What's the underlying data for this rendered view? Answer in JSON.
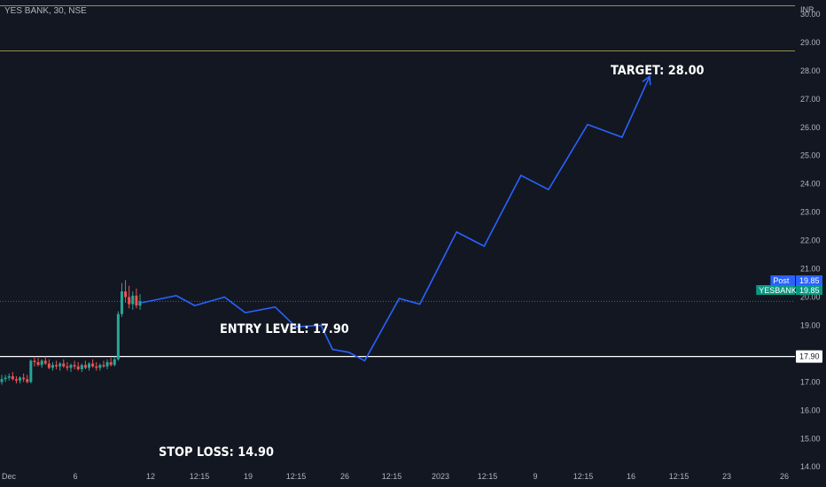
{
  "header": {
    "title": "YES BANK, 30, NSE",
    "currency": "INR"
  },
  "chart_data": {
    "type": "candlestick",
    "ylim": [
      13.6,
      30.5
    ],
    "y_ticks": [
      14,
      15,
      16,
      17,
      18,
      19,
      20,
      21,
      22,
      23,
      24,
      25,
      26,
      27,
      28,
      29,
      30
    ],
    "y_tick_labels": [
      "14.00",
      "15.00",
      "16.00",
      "17.00",
      "18.00",
      "19.00",
      "20.00",
      "21.00",
      "22.00",
      "23.00",
      "24.00",
      "25.00",
      "26.00",
      "27.00",
      "28.00",
      "29.00",
      "30.00"
    ],
    "x_tick_labels": [
      "Dec",
      "6",
      "12",
      "12:15",
      "19",
      "12:15",
      "26",
      "12:15",
      "2023",
      "12:15",
      "9",
      "12:15",
      "16",
      "12:15",
      "23",
      "26"
    ],
    "x_tick_index": [
      2,
      77,
      162,
      217,
      272,
      326,
      381,
      434,
      489,
      542,
      596,
      650,
      704,
      758,
      812,
      877
    ],
    "horizontal_levels": [
      {
        "value": 30.3,
        "color": "#c2b55c"
      },
      {
        "value": 28.7,
        "color": "#c2b55c"
      },
      {
        "value": 17.9,
        "color": "#ffffff",
        "label": "17.90"
      }
    ],
    "last_price": 19.85,
    "price_badges": [
      {
        "name": "Post",
        "value": "19.85",
        "color": "#2962ff"
      },
      {
        "name": "YESBANK",
        "value": "19.85",
        "color": "#089981"
      }
    ],
    "candles_note": "approximate",
    "candles": [
      {
        "o": 17.0,
        "h": 17.25,
        "l": 16.9,
        "c": 17.1
      },
      {
        "o": 17.1,
        "h": 17.25,
        "l": 17.0,
        "c": 17.15
      },
      {
        "o": 17.15,
        "h": 17.3,
        "l": 17.05,
        "c": 17.2
      },
      {
        "o": 17.2,
        "h": 17.35,
        "l": 17.05,
        "c": 17.1
      },
      {
        "o": 17.1,
        "h": 17.2,
        "l": 16.95,
        "c": 17.05
      },
      {
        "o": 17.05,
        "h": 17.2,
        "l": 16.95,
        "c": 17.15
      },
      {
        "o": 17.15,
        "h": 17.3,
        "l": 17.0,
        "c": 17.1
      },
      {
        "o": 17.1,
        "h": 17.25,
        "l": 16.95,
        "c": 17.0
      },
      {
        "o": 17.0,
        "h": 17.8,
        "l": 16.95,
        "c": 17.75
      },
      {
        "o": 17.75,
        "h": 17.9,
        "l": 17.55,
        "c": 17.7
      },
      {
        "o": 17.7,
        "h": 17.85,
        "l": 17.55,
        "c": 17.6
      },
      {
        "o": 17.6,
        "h": 17.8,
        "l": 17.5,
        "c": 17.75
      },
      {
        "o": 17.75,
        "h": 17.9,
        "l": 17.6,
        "c": 17.65
      },
      {
        "o": 17.65,
        "h": 17.8,
        "l": 17.45,
        "c": 17.5
      },
      {
        "o": 17.5,
        "h": 17.7,
        "l": 17.4,
        "c": 17.6
      },
      {
        "o": 17.6,
        "h": 17.75,
        "l": 17.45,
        "c": 17.55
      },
      {
        "o": 17.55,
        "h": 17.7,
        "l": 17.4,
        "c": 17.65
      },
      {
        "o": 17.65,
        "h": 17.8,
        "l": 17.5,
        "c": 17.55
      },
      {
        "o": 17.55,
        "h": 17.7,
        "l": 17.4,
        "c": 17.5
      },
      {
        "o": 17.5,
        "h": 17.65,
        "l": 17.35,
        "c": 17.6
      },
      {
        "o": 17.6,
        "h": 17.75,
        "l": 17.45,
        "c": 17.55
      },
      {
        "o": 17.55,
        "h": 17.7,
        "l": 17.4,
        "c": 17.45
      },
      {
        "o": 17.45,
        "h": 17.65,
        "l": 17.35,
        "c": 17.6
      },
      {
        "o": 17.6,
        "h": 17.75,
        "l": 17.45,
        "c": 17.5
      },
      {
        "o": 17.5,
        "h": 17.7,
        "l": 17.4,
        "c": 17.65
      },
      {
        "o": 17.65,
        "h": 17.8,
        "l": 17.5,
        "c": 17.55
      },
      {
        "o": 17.55,
        "h": 17.7,
        "l": 17.4,
        "c": 17.5
      },
      {
        "o": 17.5,
        "h": 17.65,
        "l": 17.4,
        "c": 17.6
      },
      {
        "o": 17.6,
        "h": 17.75,
        "l": 17.5,
        "c": 17.55
      },
      {
        "o": 17.55,
        "h": 17.8,
        "l": 17.45,
        "c": 17.7
      },
      {
        "o": 17.7,
        "h": 17.85,
        "l": 17.55,
        "c": 17.6
      },
      {
        "o": 17.6,
        "h": 17.9,
        "l": 17.55,
        "c": 17.8
      },
      {
        "o": 17.8,
        "h": 19.5,
        "l": 17.75,
        "c": 19.4
      },
      {
        "o": 19.4,
        "h": 20.5,
        "l": 19.3,
        "c": 20.2
      },
      {
        "o": 20.2,
        "h": 20.6,
        "l": 19.8,
        "c": 20.0
      },
      {
        "o": 20.0,
        "h": 20.4,
        "l": 19.6,
        "c": 19.75
      },
      {
        "o": 19.75,
        "h": 20.2,
        "l": 19.55,
        "c": 20.05
      },
      {
        "o": 20.05,
        "h": 20.3,
        "l": 19.6,
        "c": 19.7
      },
      {
        "o": 19.7,
        "h": 20.1,
        "l": 19.55,
        "c": 19.85
      }
    ],
    "projection_path": [
      {
        "t": 0,
        "v": 19.8
      },
      {
        "t": 1.5,
        "v": 20.05
      },
      {
        "t": 2.3,
        "v": 19.7
      },
      {
        "t": 3.6,
        "v": 20.0
      },
      {
        "t": 4.5,
        "v": 19.45
      },
      {
        "t": 5.8,
        "v": 19.65
      },
      {
        "t": 6.7,
        "v": 18.95
      },
      {
        "t": 7.8,
        "v": 19.0
      },
      {
        "t": 8.3,
        "v": 18.15
      },
      {
        "t": 9.0,
        "v": 18.05
      },
      {
        "t": 9.7,
        "v": 17.75
      },
      {
        "t": 11.2,
        "v": 19.95
      },
      {
        "t": 12.1,
        "v": 19.75
      },
      {
        "t": 13.7,
        "v": 22.3
      },
      {
        "t": 14.9,
        "v": 21.8
      },
      {
        "t": 16.5,
        "v": 24.3
      },
      {
        "t": 17.7,
        "v": 23.8
      },
      {
        "t": 19.4,
        "v": 26.1
      },
      {
        "t": 20.9,
        "v": 25.65
      },
      {
        "t": 22.1,
        "v": 27.8
      }
    ],
    "annotations": [
      {
        "text": "TARGET: 28.00"
      },
      {
        "text": "ENTRY LEVEL: 17.90"
      },
      {
        "text": "STOP LOSS: 14.90"
      }
    ]
  }
}
